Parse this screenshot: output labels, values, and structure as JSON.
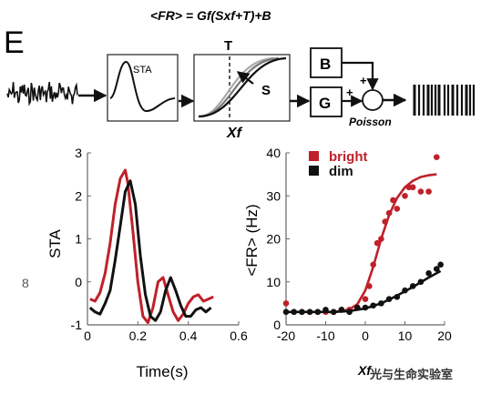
{
  "panel_letter": "E",
  "equation": "<FR> = Gf(Sxf+T)+B",
  "block_labels": {
    "sta": "STA",
    "threshold": "T",
    "slope": "S",
    "filtered_input": "Xf",
    "baseline": "B",
    "gain": "G",
    "plus_top": "+",
    "plus_left": "+",
    "poisson": "Poisson"
  },
  "margin_glyph": "8",
  "watermark": "光与生命实验室",
  "colors": {
    "bright": "#c0202a",
    "dim": "#111111",
    "gray_mid": "#777777",
    "gray_light": "#aaaaaa"
  },
  "chart_data": [
    {
      "type": "line",
      "ylabel": "STA",
      "xlabel": "Time(s)",
      "xlim": [
        0,
        0.6
      ],
      "ylim": [
        -1,
        3
      ],
      "xticks": [
        "0",
        "0.2",
        "0.4",
        "0.6"
      ],
      "yticks": [
        "-1",
        "0",
        "1",
        "2",
        "3"
      ],
      "series": [
        {
          "name": "bright",
          "x": [
            0.01,
            0.03,
            0.05,
            0.07,
            0.09,
            0.11,
            0.13,
            0.15,
            0.16,
            0.18,
            0.2,
            0.22,
            0.24,
            0.26,
            0.28,
            0.3,
            0.32,
            0.34,
            0.36,
            0.38,
            0.4,
            0.42,
            0.44,
            0.46,
            0.48,
            0.5
          ],
          "y": [
            -0.4,
            -0.45,
            -0.25,
            0.2,
            0.9,
            1.8,
            2.4,
            2.6,
            2.3,
            1.2,
            0.0,
            -0.8,
            -0.95,
            -0.6,
            0.0,
            0.1,
            -0.3,
            -0.7,
            -0.9,
            -0.75,
            -0.5,
            -0.35,
            -0.3,
            -0.45,
            -0.4,
            -0.35
          ]
        },
        {
          "name": "dim",
          "x": [
            0.01,
            0.03,
            0.05,
            0.07,
            0.09,
            0.11,
            0.13,
            0.15,
            0.17,
            0.19,
            0.21,
            0.23,
            0.25,
            0.27,
            0.29,
            0.31,
            0.33,
            0.35,
            0.37,
            0.39,
            0.41,
            0.43,
            0.45,
            0.47,
            0.49
          ],
          "y": [
            -0.6,
            -0.7,
            -0.75,
            -0.5,
            -0.2,
            0.5,
            1.3,
            2.1,
            2.35,
            1.8,
            0.6,
            -0.3,
            -0.8,
            -0.9,
            -0.7,
            -0.2,
            0.1,
            -0.2,
            -0.55,
            -0.8,
            -0.8,
            -0.65,
            -0.6,
            -0.7,
            -0.6
          ]
        }
      ]
    },
    {
      "type": "scatter",
      "ylabel": "<FR> (Hz)",
      "xlabel": "Xf",
      "xlim": [
        -20,
        20
      ],
      "ylim": [
        0,
        40
      ],
      "xticks": [
        "-20",
        "-10",
        "0",
        "10",
        "20"
      ],
      "yticks": [
        "0",
        "10",
        "20",
        "30",
        "40"
      ],
      "legend": {
        "position": "top-left",
        "entries": [
          "bright",
          "dim"
        ]
      },
      "series": [
        {
          "name": "bright",
          "points_x": [
            -20,
            -18,
            -16,
            -14,
            -12,
            -10,
            -8,
            -6,
            -4,
            -2,
            0,
            1,
            2,
            3,
            4,
            5,
            6,
            7,
            8,
            10,
            11,
            12,
            14,
            16,
            18
          ],
          "points_y": [
            5,
            3,
            3,
            3,
            3,
            3,
            3,
            3.5,
            3.5,
            4,
            6,
            9,
            14,
            19,
            20,
            24,
            26,
            29,
            27,
            30,
            32,
            32,
            31,
            31,
            39
          ],
          "fit_x": [
            -20,
            -16,
            -12,
            -8,
            -6,
            -4,
            -2,
            0,
            2,
            4,
            6,
            8,
            10,
            12,
            14,
            16,
            18
          ],
          "fit_y": [
            3,
            3,
            3,
            3,
            3.2,
            3.6,
            4.8,
            8,
            13.5,
            20,
            25.5,
            29.5,
            32,
            33.5,
            34.4,
            34.8,
            35
          ]
        },
        {
          "name": "dim",
          "points_x": [
            -20,
            -18,
            -16,
            -14,
            -12,
            -10,
            -8,
            -6,
            -4,
            -2,
            0,
            2,
            4,
            6,
            8,
            10,
            12,
            14,
            16,
            18,
            19
          ],
          "points_y": [
            3,
            3,
            3,
            3,
            3,
            3.5,
            3,
            3.5,
            3,
            4,
            4,
            4.5,
            5,
            6,
            6.5,
            8,
            9,
            10,
            12,
            13,
            14
          ],
          "fit_x": [
            -20,
            -16,
            -12,
            -8,
            -4,
            0,
            4,
            8,
            12,
            16,
            19
          ],
          "fit_y": [
            3,
            3,
            3,
            3,
            3.2,
            3.8,
            5,
            6.8,
            8.8,
            11,
            12.5
          ]
        }
      ]
    }
  ]
}
